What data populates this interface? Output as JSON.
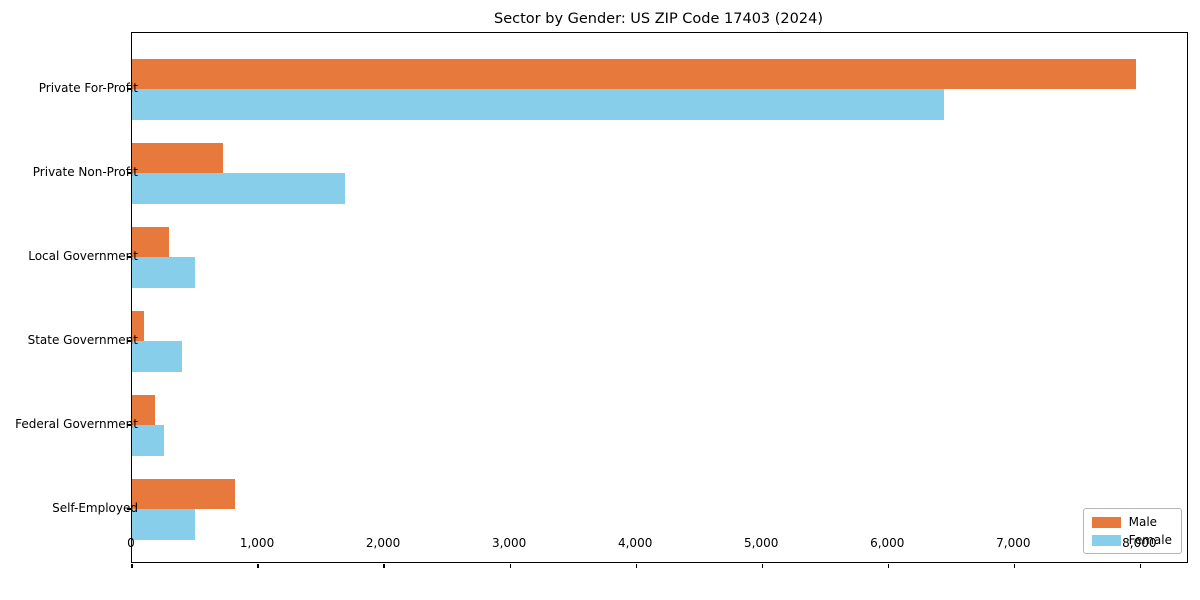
{
  "chart_data": {
    "type": "bar",
    "orientation": "horizontal",
    "title": "Sector by Gender: US ZIP Code 17403 (2024)",
    "categories": [
      "Private For-Profit",
      "Private Non-Profit",
      "Local Government",
      "State Government",
      "Federal Government",
      "Self-Employed"
    ],
    "series": [
      {
        "name": "Male",
        "color": "#e8793c",
        "values": [
          7965,
          720,
          295,
          95,
          185,
          815
        ]
      },
      {
        "name": "Female",
        "color": "#87ceeb",
        "values": [
          6445,
          1690,
          500,
          400,
          250,
          500
        ]
      }
    ],
    "xlim": [
      0,
      8370
    ],
    "x_ticks": [
      0,
      1000,
      2000,
      3000,
      4000,
      5000,
      6000,
      7000,
      8000
    ],
    "x_tick_labels": [
      "0",
      "1,000",
      "2,000",
      "3,000",
      "4,000",
      "5,000",
      "6,000",
      "7,000",
      "8,000"
    ],
    "xlabel": "",
    "ylabel": "",
    "grid": false,
    "legend": {
      "position": "lower right",
      "items": [
        "Male",
        "Female"
      ]
    }
  }
}
